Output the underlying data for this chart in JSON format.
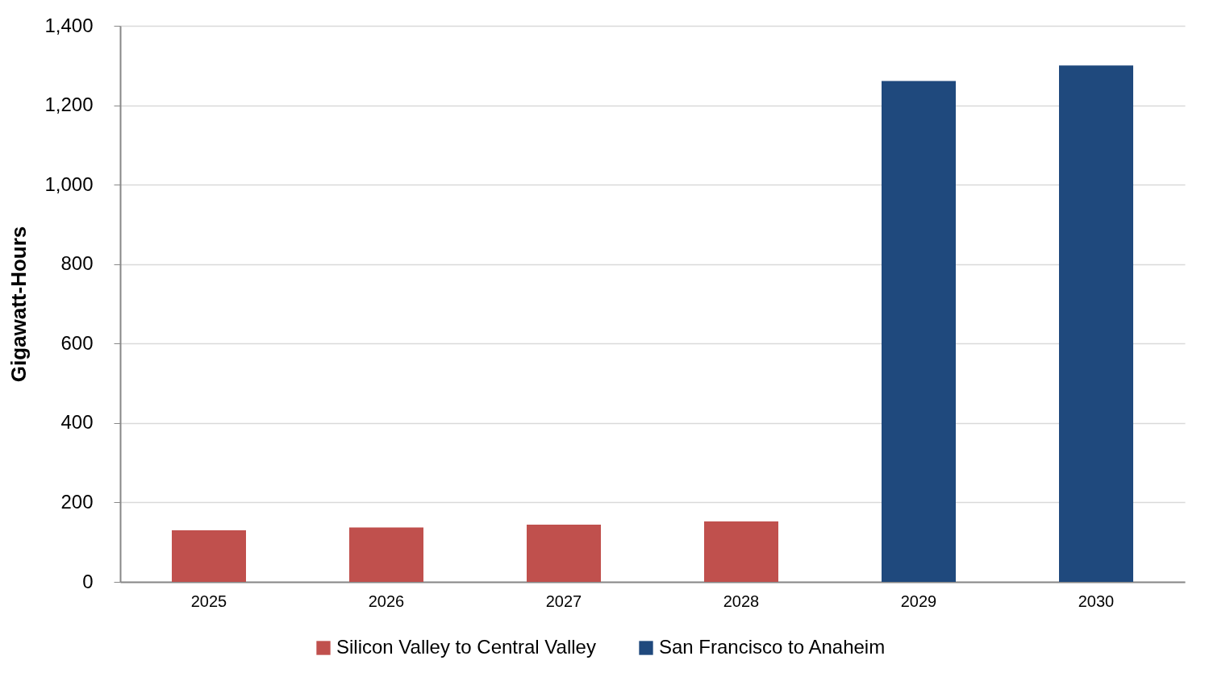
{
  "chart_data": {
    "type": "bar",
    "ylabel": "Gigawatt-Hours",
    "categories": [
      "2025",
      "2026",
      "2027",
      "2028",
      "2029",
      "2030"
    ],
    "series": [
      {
        "name": "Silicon Valley to Central Valley",
        "color": "#c0504d",
        "values": [
          130,
          137,
          144,
          152,
          null,
          null
        ]
      },
      {
        "name": "San Francisco to Anaheim",
        "color": "#1f497d",
        "values": [
          null,
          null,
          null,
          null,
          1261,
          1300
        ]
      }
    ],
    "ylim": [
      0,
      1400
    ],
    "yticks": [
      0,
      200,
      400,
      600,
      800,
      {
        "value": 1000,
        "label": "1,000"
      },
      {
        "value": 1200,
        "label": "1,200"
      },
      {
        "value": 1400,
        "label": "1,400"
      }
    ],
    "grid": "y",
    "legend": "bottom"
  }
}
